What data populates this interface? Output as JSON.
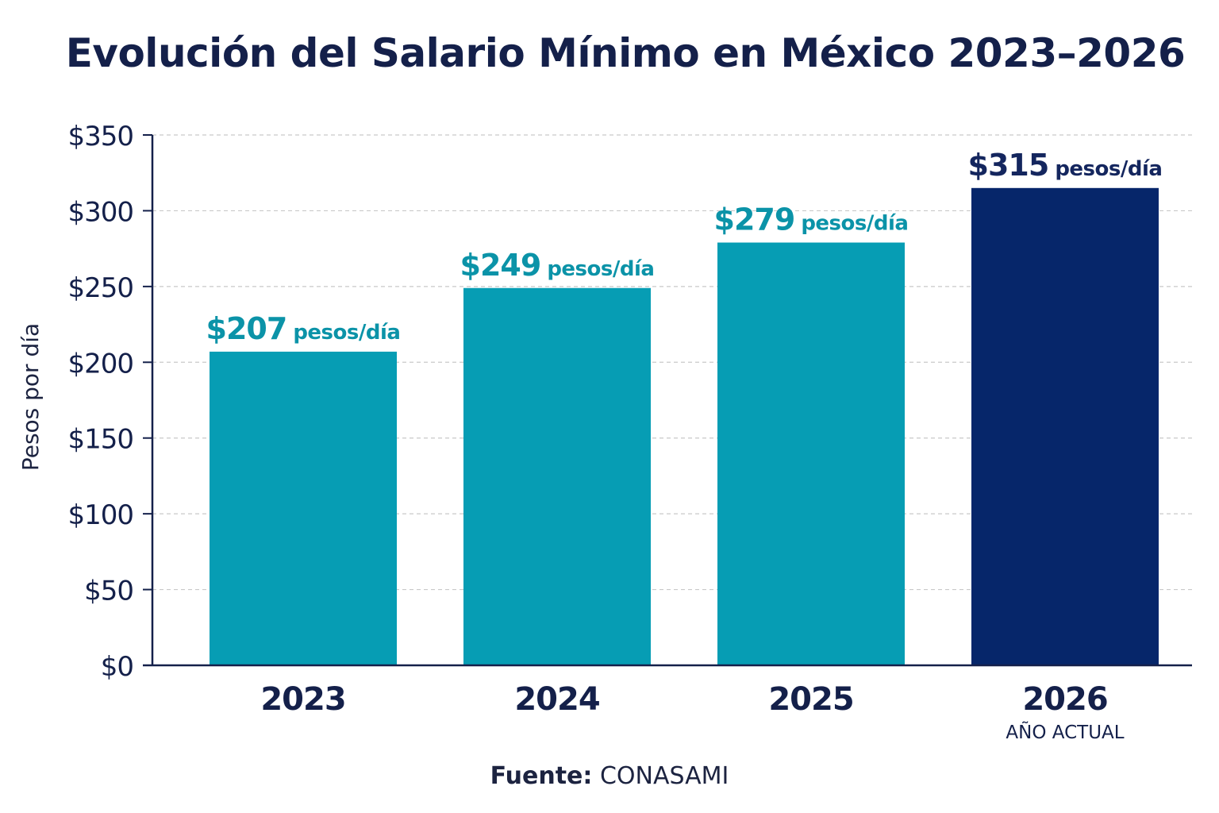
{
  "chart_data": {
    "type": "bar",
    "title": "Evolución del Salario Mínimo en México 2023–2026",
    "ylabel": "Pesos por día",
    "xlabel": "",
    "categories": [
      "2023",
      "2024",
      "2025",
      "2026"
    ],
    "category_notes": [
      "",
      "",
      "",
      "AÑO ACTUAL"
    ],
    "values": [
      207,
      249,
      279,
      315
    ],
    "value_labels": [
      "$207",
      "$249",
      "$279",
      "$315"
    ],
    "value_unit": "pesos/día",
    "ylim": [
      0,
      350
    ],
    "yticks": [
      0,
      50,
      100,
      150,
      200,
      250,
      300,
      350
    ],
    "ytick_labels": [
      "$0",
      "$50",
      "$100",
      "$150",
      "$200",
      "$250",
      "$300",
      "$350"
    ],
    "grid": true,
    "highlight_index": 3,
    "colors": {
      "bar": "#069db4",
      "highlight_bar": "#06266a",
      "label": "#0b93a8",
      "highlight_label": "#14265e",
      "axis": "#14204a",
      "grid": "#c9c9c9"
    }
  },
  "source": {
    "label": "Fuente:",
    "value": "CONASAMI"
  }
}
